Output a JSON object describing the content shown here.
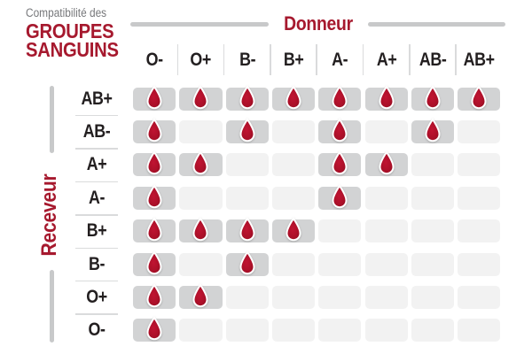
{
  "title": {
    "eyebrow": "Compatibilité des",
    "line1": "GROUPES",
    "line2": "SANGUINS"
  },
  "axes": {
    "donor": "Donneur",
    "receiver": "Receveur"
  },
  "chart_data": {
    "type": "heatmap",
    "title": "Compatibilité des GROUPES SANGUINS",
    "x_axis_label": "Donneur",
    "y_axis_label": "Receveur",
    "columns": [
      "O-",
      "O+",
      "B-",
      "B+",
      "A-",
      "A+",
      "AB-",
      "AB+"
    ],
    "rows": [
      "AB+",
      "AB-",
      "A+",
      "A-",
      "B+",
      "B-",
      "O+",
      "O-"
    ],
    "matrix": [
      [
        1,
        1,
        1,
        1,
        1,
        1,
        1,
        1
      ],
      [
        1,
        0,
        1,
        0,
        1,
        0,
        1,
        0
      ],
      [
        1,
        1,
        0,
        0,
        1,
        1,
        0,
        0
      ],
      [
        1,
        0,
        0,
        0,
        1,
        0,
        0,
        0
      ],
      [
        1,
        1,
        1,
        1,
        0,
        0,
        0,
        0
      ],
      [
        1,
        0,
        1,
        0,
        0,
        0,
        0,
        0
      ],
      [
        1,
        1,
        0,
        0,
        0,
        0,
        0,
        0
      ],
      [
        1,
        0,
        0,
        0,
        0,
        0,
        0,
        0
      ]
    ],
    "cell_marker": "blood-drop",
    "legend_position": "none",
    "grid": "off"
  },
  "colors": {
    "accent_red": "#A6192E",
    "drop_red_light": "#C01432",
    "drop_red": "#AC1029",
    "drop_red_dark": "#8E0C20",
    "cell_filled": "#D2D3D4",
    "cell_empty": "#F2F2F2",
    "divider": "#DADBDC",
    "axis_line": "#C8C9CA",
    "text_dark": "#231F20",
    "text_gray": "#77787B"
  }
}
